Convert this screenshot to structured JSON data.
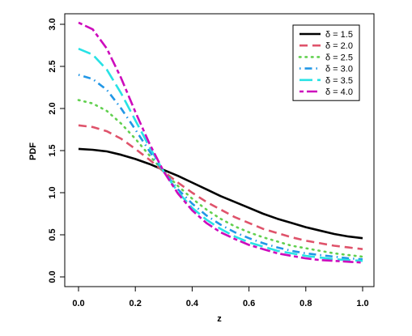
{
  "chart_data": {
    "type": "line",
    "title": "",
    "xlabel": "z",
    "ylabel": "PDF",
    "xlim": [
      0,
      1
    ],
    "ylim": [
      0,
      3
    ],
    "xticks": [
      "0.0",
      "0.2",
      "0.4",
      "0.6",
      "0.8",
      "1.0"
    ],
    "yticks": [
      "0.0",
      "0.5",
      "1.0",
      "1.5",
      "2.0",
      "2.5",
      "3.0"
    ],
    "grid": false,
    "legend_position": "top-right",
    "x": [
      0.0,
      0.05,
      0.1,
      0.15,
      0.2,
      0.25,
      0.3,
      0.35,
      0.4,
      0.45,
      0.5,
      0.55,
      0.6,
      0.65,
      0.7,
      0.75,
      0.8,
      0.85,
      0.9,
      0.95,
      1.0
    ],
    "series": [
      {
        "name": "δ = 1.5",
        "color": "#000000",
        "dash": "solid",
        "values": [
          1.52,
          1.51,
          1.49,
          1.45,
          1.4,
          1.34,
          1.27,
          1.2,
          1.12,
          1.04,
          0.96,
          0.89,
          0.82,
          0.75,
          0.69,
          0.64,
          0.59,
          0.55,
          0.51,
          0.48,
          0.46
        ]
      },
      {
        "name": "δ = 2.0",
        "color": "#DF536B",
        "dash": "dashed",
        "values": [
          1.8,
          1.78,
          1.73,
          1.64,
          1.52,
          1.39,
          1.25,
          1.12,
          1.0,
          0.89,
          0.8,
          0.71,
          0.64,
          0.57,
          0.52,
          0.47,
          0.43,
          0.4,
          0.37,
          0.35,
          0.33
        ]
      },
      {
        "name": "δ = 2.5",
        "color": "#61D04F",
        "dash": "dotted",
        "values": [
          2.1,
          2.06,
          1.97,
          1.82,
          1.64,
          1.44,
          1.25,
          1.08,
          0.93,
          0.8,
          0.69,
          0.6,
          0.53,
          0.47,
          0.42,
          0.37,
          0.34,
          0.31,
          0.28,
          0.26,
          0.24
        ]
      },
      {
        "name": "δ = 3.0",
        "color": "#2297E6",
        "dash": "dotdash",
        "values": [
          2.4,
          2.35,
          2.22,
          2.0,
          1.75,
          1.49,
          1.25,
          1.04,
          0.87,
          0.73,
          0.62,
          0.53,
          0.46,
          0.4,
          0.35,
          0.31,
          0.28,
          0.26,
          0.24,
          0.22,
          0.21
        ]
      },
      {
        "name": "δ = 3.5",
        "color": "#28E2E5",
        "dash": "longdash",
        "values": [
          2.71,
          2.64,
          2.46,
          2.18,
          1.86,
          1.54,
          1.25,
          1.01,
          0.82,
          0.68,
          0.57,
          0.48,
          0.41,
          0.36,
          0.31,
          0.28,
          0.25,
          0.23,
          0.21,
          0.2,
          0.19
        ]
      },
      {
        "name": "δ = 4.0",
        "color": "#CD0BBC",
        "dash": "twodash",
        "values": [
          3.02,
          2.94,
          2.71,
          2.36,
          1.96,
          1.58,
          1.25,
          0.99,
          0.79,
          0.64,
          0.53,
          0.45,
          0.38,
          0.33,
          0.28,
          0.25,
          0.22,
          0.2,
          0.19,
          0.18,
          0.17
        ]
      }
    ]
  }
}
